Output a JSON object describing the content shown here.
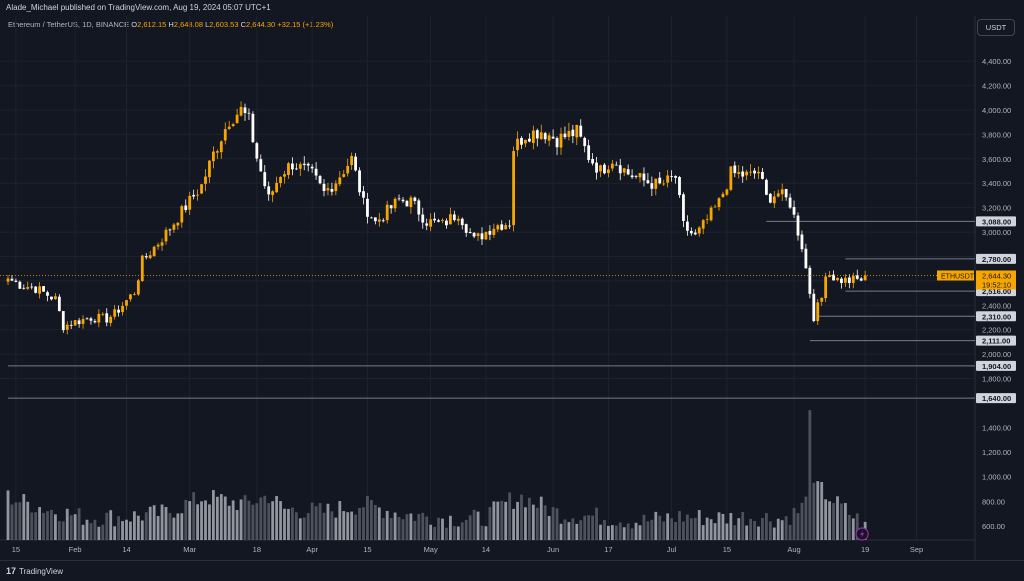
{
  "header": {
    "publisher": "Alade_Michael published on TradingView.com, Aug 19, 2024 05:07 UTC+1",
    "symbol": "Ethereum / TetherUS, 1D, BINANCE",
    "o_label": "O",
    "o_value": "2,612.15",
    "h_label": "H",
    "h_value": "2,648.08",
    "l_label": "L",
    "l_value": "2,603.53",
    "c_label": "C",
    "c_value": "2,644.30",
    "change": "+32.15 (+1.23%)"
  },
  "currency_button": "USDT",
  "footer": {
    "brand": "TradingView",
    "brand_mark": "17"
  },
  "colors": {
    "background": "#131722",
    "up": "#f7a600",
    "down": "#ffffff",
    "grid": "#1e222d",
    "level_line": "#787b86"
  },
  "chart_data": {
    "type": "candlestick",
    "symbol": "ETHUSDT",
    "price_axis": {
      "ylim": [
        1500,
        4600
      ],
      "ticks": [
        {
          "v": 4400,
          "label": "4,400.00"
        },
        {
          "v": 4200,
          "label": "4,200.00"
        },
        {
          "v": 4000,
          "label": "4,000.00"
        },
        {
          "v": 3800,
          "label": "3,800.00"
        },
        {
          "v": 3600,
          "label": "3,600.00"
        },
        {
          "v": 3400,
          "label": "3,400.00"
        },
        {
          "v": 3200,
          "label": "3,200.00"
        },
        {
          "v": 3000,
          "label": "3,000.00"
        },
        {
          "v": 2800,
          "label": "2,800.00"
        },
        {
          "v": 2600,
          "label": "2,600.00"
        },
        {
          "v": 2400,
          "label": "2,400.00"
        },
        {
          "v": 2200,
          "label": "2,200.00"
        },
        {
          "v": 2000,
          "label": "2,000.00"
        },
        {
          "v": 1800,
          "label": "1,800.00"
        }
      ]
    },
    "volume_axis": {
      "ylim": [
        500,
        1720
      ],
      "ticks": [
        {
          "v": 1400,
          "label": "1,400.00"
        },
        {
          "v": 1200,
          "label": "1,200.00"
        },
        {
          "v": 1000,
          "label": "1,000.00"
        },
        {
          "v": 800,
          "label": "800.00"
        },
        {
          "v": 600,
          "label": "600.00"
        }
      ]
    },
    "x_ticks": [
      {
        "i": 2,
        "label": "15"
      },
      {
        "i": 17,
        "label": "Feb"
      },
      {
        "i": 30,
        "label": "14"
      },
      {
        "i": 46,
        "label": "Mar"
      },
      {
        "i": 63,
        "label": "18"
      },
      {
        "i": 77,
        "label": "Apr"
      },
      {
        "i": 91,
        "label": "15"
      },
      {
        "i": 107,
        "label": "May"
      },
      {
        "i": 121,
        "label": "14"
      },
      {
        "i": 138,
        "label": "Jun"
      },
      {
        "i": 152,
        "label": "17"
      },
      {
        "i": 168,
        "label": "Jul"
      },
      {
        "i": 182,
        "label": "15"
      },
      {
        "i": 199,
        "label": "Aug"
      },
      {
        "i": 217,
        "label": "19"
      },
      {
        "i": 230,
        "label": "Sep"
      }
    ],
    "horizontal_levels": [
      {
        "price": 3088,
        "label": "3,088.00",
        "start_index": 192
      },
      {
        "price": 2780,
        "label": "2,780.00",
        "start_index": 212
      },
      {
        "price": 2516,
        "label": "2,516.00",
        "start_index": 212
      },
      {
        "price": 2310,
        "label": "2,310.00",
        "start_index": 205
      },
      {
        "price": 2111,
        "label": "2,111.00",
        "start_index": 203
      },
      {
        "price": 1904,
        "label": "1,904.00",
        "start_index": 0
      },
      {
        "price": 1640,
        "label": "1,640.00",
        "start_index": 0
      }
    ],
    "last_price": {
      "price": 2644.3,
      "label": "2,644.30",
      "symbol_label": "ETHUSDT",
      "countdown": "19:52:10"
    },
    "volume_spike": {
      "index": 203,
      "value": 1540
    },
    "anchors": [
      [
        0,
        2620
      ],
      [
        3,
        2570
      ],
      [
        7,
        2540
      ],
      [
        12,
        2450
      ],
      [
        14,
        2230
      ],
      [
        17,
        2265
      ],
      [
        21,
        2300
      ],
      [
        25,
        2290
      ],
      [
        27,
        2330
      ],
      [
        32,
        2510
      ],
      [
        34,
        2760
      ],
      [
        40,
        2990
      ],
      [
        45,
        3210
      ],
      [
        49,
        3380
      ],
      [
        52,
        3640
      ],
      [
        56,
        3920
      ],
      [
        59,
        4000
      ],
      [
        61,
        3910
      ],
      [
        63,
        3610
      ],
      [
        66,
        3270
      ],
      [
        69,
        3480
      ],
      [
        72,
        3560
      ],
      [
        77,
        3470
      ],
      [
        80,
        3320
      ],
      [
        83,
        3420
      ],
      [
        87,
        3600
      ],
      [
        90,
        3230
      ],
      [
        93,
        3080
      ],
      [
        96,
        3170
      ],
      [
        99,
        3260
      ],
      [
        102,
        3250
      ],
      [
        106,
        3090
      ],
      [
        110,
        3060
      ],
      [
        114,
        3160
      ],
      [
        118,
        2930
      ],
      [
        123,
        3050
      ],
      [
        127,
        3080
      ],
      [
        128,
        3690
      ],
      [
        131,
        3800
      ],
      [
        135,
        3830
      ],
      [
        139,
        3760
      ],
      [
        144,
        3820
      ],
      [
        147,
        3620
      ],
      [
        150,
        3500
      ],
      [
        153,
        3600
      ],
      [
        157,
        3480
      ],
      [
        161,
        3420
      ],
      [
        165,
        3380
      ],
      [
        169,
        3450
      ],
      [
        171,
        3050
      ],
      [
        174,
        2960
      ],
      [
        177,
        3100
      ],
      [
        180,
        3240
      ],
      [
        183,
        3480
      ],
      [
        188,
        3460
      ],
      [
        190,
        3500
      ],
      [
        192,
        3280
      ],
      [
        195,
        3320
      ],
      [
        198,
        3240
      ],
      [
        201,
        2890
      ],
      [
        203,
        2510
      ],
      [
        204,
        2310
      ],
      [
        206,
        2460
      ],
      [
        207,
        2680
      ],
      [
        210,
        2610
      ],
      [
        213,
        2600
      ],
      [
        216,
        2612
      ],
      [
        217,
        2644.3
      ]
    ],
    "volume_anchors": [
      [
        0,
        820
      ],
      [
        10,
        720
      ],
      [
        20,
        650
      ],
      [
        30,
        660
      ],
      [
        40,
        690
      ],
      [
        45,
        760
      ],
      [
        50,
        820
      ],
      [
        60,
        760
      ],
      [
        66,
        830
      ],
      [
        70,
        720
      ],
      [
        80,
        700
      ],
      [
        90,
        760
      ],
      [
        100,
        680
      ],
      [
        110,
        650
      ],
      [
        120,
        640
      ],
      [
        127,
        790
      ],
      [
        130,
        820
      ],
      [
        140,
        680
      ],
      [
        150,
        660
      ],
      [
        160,
        620
      ],
      [
        170,
        660
      ],
      [
        180,
        650
      ],
      [
        190,
        660
      ],
      [
        196,
        640
      ],
      [
        200,
        700
      ],
      [
        205,
        900
      ],
      [
        210,
        760
      ],
      [
        215,
        640
      ],
      [
        217,
        570
      ]
    ]
  }
}
